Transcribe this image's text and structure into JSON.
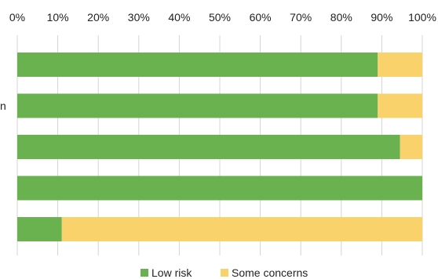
{
  "chart_data": {
    "type": "bar",
    "orientation": "horizontal",
    "stacked": true,
    "categories": [
      "",
      "n",
      "",
      "",
      ""
    ],
    "series": [
      {
        "name": "Low risk",
        "values": [
          89,
          89,
          94.5,
          100,
          11
        ],
        "color": "#6ab150"
      },
      {
        "name": "Some concerns",
        "values": [
          11,
          11,
          5.5,
          0,
          89
        ],
        "color": "#f9d26b"
      }
    ],
    "xlim": [
      0,
      100
    ],
    "x_ticks": [
      "0%",
      "10%",
      "20%",
      "30%",
      "40%",
      "50%",
      "60%",
      "70%",
      "80%",
      "90%",
      "100%"
    ],
    "x_axis_position": "top",
    "grid": true,
    "legend_position": "bottom-center"
  }
}
